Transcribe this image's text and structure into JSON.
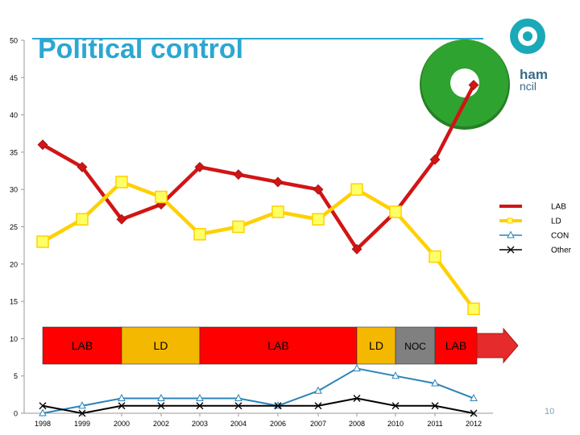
{
  "slide": {
    "title": "Political control",
    "page_number": "10",
    "logo_text_line1": "ham",
    "logo_text_line2": "ncil"
  },
  "colors": {
    "title": "#2ba7d3",
    "LAB": "#d11515",
    "LD": "#ffd000",
    "CON": "#2b84b8",
    "Other": "#000000",
    "control_LAB": "#ff0000",
    "control_LD": "#f5b800",
    "control_NOC": "#808080",
    "green_circle": "#2fa32f"
  },
  "chart_data": {
    "type": "line",
    "categories": [
      "1998",
      "1999",
      "2000",
      "2002",
      "2003",
      "2004",
      "2006",
      "2007",
      "2008",
      "2010",
      "2011",
      "2012"
    ],
    "ylim": [
      0,
      50
    ],
    "yticks": [
      0,
      5,
      10,
      15,
      20,
      25,
      30,
      35,
      40,
      45,
      50
    ],
    "legend_position": "right",
    "series": [
      {
        "name": "LAB",
        "values": [
          36,
          33,
          26,
          28,
          33,
          32,
          31,
          30,
          22,
          27,
          34,
          44
        ]
      },
      {
        "name": "LD",
        "values": [
          23,
          26,
          31,
          29,
          24,
          25,
          27,
          26,
          30,
          27,
          21,
          14
        ]
      },
      {
        "name": "CON",
        "values": [
          0,
          1,
          2,
          2,
          2,
          2,
          1,
          3,
          6,
          5,
          4,
          2
        ]
      },
      {
        "name": "Other",
        "values": [
          1,
          0,
          1,
          1,
          1,
          1,
          1,
          1,
          2,
          1,
          1,
          0
        ]
      }
    ],
    "control_bands": [
      {
        "label": "LAB",
        "party": "LAB",
        "from_index": 0,
        "to_index": 2
      },
      {
        "label": "LD",
        "party": "LD",
        "from_index": 2,
        "to_index": 4
      },
      {
        "label": "LAB",
        "party": "LAB",
        "from_index": 4,
        "to_index": 8
      },
      {
        "label": "LD",
        "party": "LD",
        "from_index": 8,
        "to_index": 9
      },
      {
        "label": "NOC",
        "party": "NOC",
        "from_index": 9,
        "to_index": 10
      },
      {
        "label": "LAB",
        "party": "LAB",
        "from_index": 10,
        "to_index": 11
      }
    ]
  }
}
